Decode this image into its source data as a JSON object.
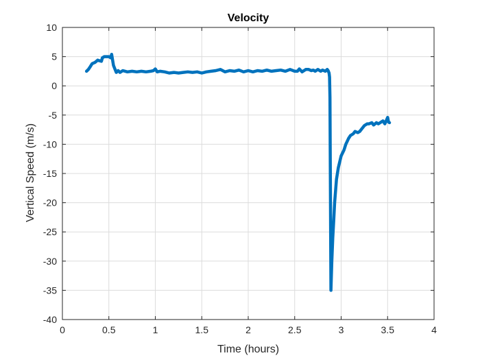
{
  "chart_data": {
    "type": "line",
    "title": "Velocity",
    "xlabel": "Time (hours)",
    "ylabel": "Vertical Speed (m/s)",
    "xlim": [
      0,
      4
    ],
    "ylim": [
      -40,
      10
    ],
    "xticks": [
      0,
      0.5,
      1,
      1.5,
      2,
      2.5,
      3,
      3.5,
      4
    ],
    "xtick_labels": [
      "0",
      "0.5",
      "1",
      "1.5",
      "2",
      "2.5",
      "3",
      "3.5",
      "4"
    ],
    "yticks": [
      -40,
      -35,
      -30,
      -25,
      -20,
      -15,
      -10,
      -5,
      0,
      5,
      10
    ],
    "ytick_labels": [
      "-40",
      "-35",
      "-30",
      "-25",
      "-20",
      "-15",
      "-10",
      "-5",
      "0",
      "5",
      "10"
    ],
    "grid": true,
    "colors": {
      "line": "#0072BD",
      "grid": "#dcdcdc",
      "axis": "#262626"
    },
    "series": [
      {
        "x": [
          0.26,
          0.28,
          0.3,
          0.32,
          0.35,
          0.38,
          0.4,
          0.42,
          0.43,
          0.45,
          0.48,
          0.5,
          0.52,
          0.53,
          0.55,
          0.57,
          0.58,
          0.6,
          0.62,
          0.65,
          0.7,
          0.75,
          0.8,
          0.85,
          0.9,
          0.95,
          0.98,
          1.0,
          1.02,
          1.05,
          1.1,
          1.15,
          1.2,
          1.25,
          1.3,
          1.35,
          1.4,
          1.45,
          1.5,
          1.55,
          1.6,
          1.65,
          1.7,
          1.75,
          1.8,
          1.85,
          1.9,
          1.95,
          2.0,
          2.05,
          2.1,
          2.15,
          2.2,
          2.25,
          2.3,
          2.35,
          2.4,
          2.45,
          2.5,
          2.53,
          2.55,
          2.58,
          2.6,
          2.62,
          2.65,
          2.68,
          2.7,
          2.72,
          2.75,
          2.78,
          2.8,
          2.83,
          2.85,
          2.86,
          2.87,
          2.875,
          2.88,
          2.89,
          2.9,
          2.91,
          2.92,
          2.93,
          2.95,
          2.97,
          3.0,
          3.03,
          3.05,
          3.08,
          3.1,
          3.13,
          3.15,
          3.18,
          3.2,
          3.23,
          3.25,
          3.28,
          3.3,
          3.33,
          3.35,
          3.38,
          3.4,
          3.43,
          3.45,
          3.47,
          3.49,
          3.5,
          3.51,
          3.52
        ],
        "y": [
          2.5,
          2.8,
          3.3,
          3.8,
          4.0,
          4.4,
          4.3,
          4.2,
          4.8,
          5.0,
          5.0,
          5.0,
          4.8,
          5.4,
          3.5,
          2.7,
          2.3,
          2.6,
          2.3,
          2.6,
          2.4,
          2.5,
          2.4,
          2.5,
          2.4,
          2.5,
          2.6,
          2.9,
          2.4,
          2.5,
          2.4,
          2.2,
          2.3,
          2.2,
          2.3,
          2.4,
          2.3,
          2.4,
          2.2,
          2.4,
          2.5,
          2.6,
          2.8,
          2.4,
          2.6,
          2.5,
          2.7,
          2.4,
          2.6,
          2.4,
          2.6,
          2.5,
          2.7,
          2.5,
          2.6,
          2.7,
          2.5,
          2.8,
          2.5,
          2.5,
          2.9,
          2.4,
          2.6,
          2.8,
          2.8,
          2.6,
          2.7,
          2.5,
          2.8,
          2.5,
          2.7,
          2.5,
          2.8,
          2.6,
          2.2,
          1.5,
          -2,
          -35,
          -30,
          -26,
          -23,
          -20,
          -16,
          -14,
          -12,
          -11,
          -10,
          -9,
          -8.5,
          -8.2,
          -7.8,
          -8,
          -7.8,
          -7.2,
          -6.8,
          -6.5,
          -6.5,
          -6.3,
          -6.7,
          -6.3,
          -6.5,
          -6.2,
          -6.0,
          -6.5,
          -5.8,
          -5.4,
          -6.2,
          -6.3
        ]
      }
    ]
  }
}
